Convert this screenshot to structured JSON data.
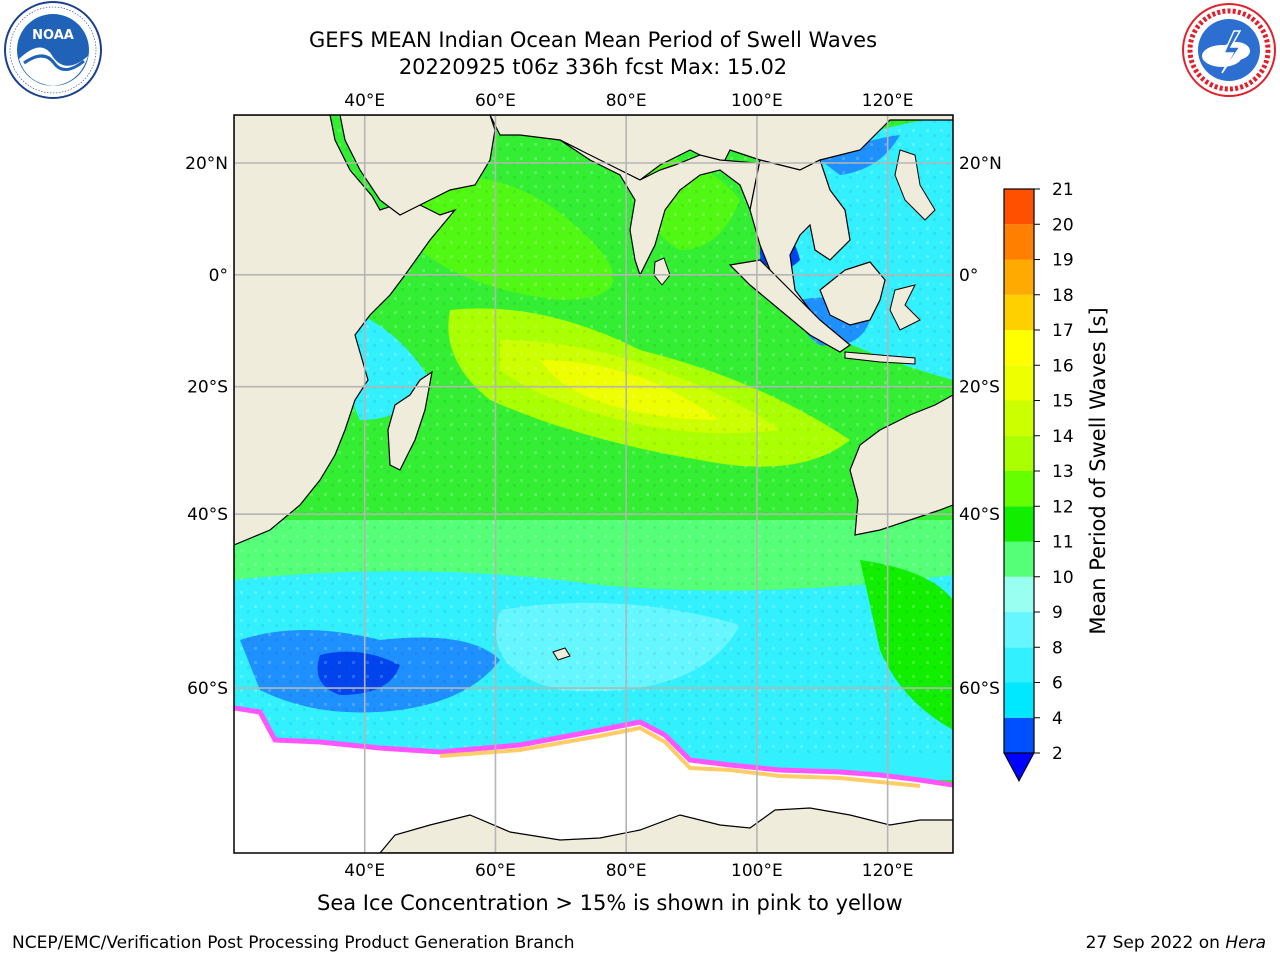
{
  "header": {
    "title_line1": "GEFS MEAN Indian Ocean Mean Period of Swell Waves",
    "title_line2": "20220925 t06z 336h fcst   Max: 15.02"
  },
  "logos": {
    "left": {
      "name": "noaa-logo",
      "text": "NOAA",
      "ring_text": "NATIONAL OCEANIC AND ATMOSPHERIC ADMINISTRATION · U.S. DEPARTMENT OF COMMERCE"
    },
    "right": {
      "name": "nws-logo",
      "ring_text": "NATIONAL WEATHER SERVICE"
    }
  },
  "map": {
    "lon_range": [
      20,
      130
    ],
    "lat_range": [
      -72,
      28
    ],
    "longitudes": [
      "40°E",
      "60°E",
      "80°E",
      "100°E",
      "120°E"
    ],
    "longitude_values": [
      40,
      60,
      80,
      100,
      120
    ],
    "latitudes": [
      "20°N",
      "0°",
      "20°S",
      "40°S",
      "60°S"
    ],
    "latitude_values": [
      20,
      0,
      -20,
      -40,
      -60
    ],
    "grid": true,
    "ocean_color": "#33ee33",
    "land_color": "#efecdc",
    "ice_edge_colors": [
      "#ff55ff",
      "#ffcc66"
    ]
  },
  "colorbar": {
    "label": "Mean Period of Swell Waves [s]",
    "ticks": [
      "2",
      "4",
      "6",
      "8",
      "9",
      "10",
      "11",
      "12",
      "13",
      "14",
      "15",
      "16",
      "17",
      "18",
      "19",
      "20",
      "21"
    ],
    "colors": [
      "#0050ff",
      "#00e8ff",
      "#33f0ff",
      "#66f6ff",
      "#99fff0",
      "#55ff77",
      "#11ee00",
      "#66ff00",
      "#aaff00",
      "#ccff00",
      "#eeff00",
      "#ffff00",
      "#ffd000",
      "#ffaa00",
      "#ff8000",
      "#ff5000",
      "#ff1800",
      "#ff0000"
    ],
    "under_color": "#0000ff"
  },
  "caption": "Sea Ice Concentration > 15% is shown in pink to yellow",
  "footer": {
    "left": "NCEP/EMC/Verification Post Processing Product Generation Branch",
    "date": "27 Sep 2022 on ",
    "machine": "Hera"
  }
}
